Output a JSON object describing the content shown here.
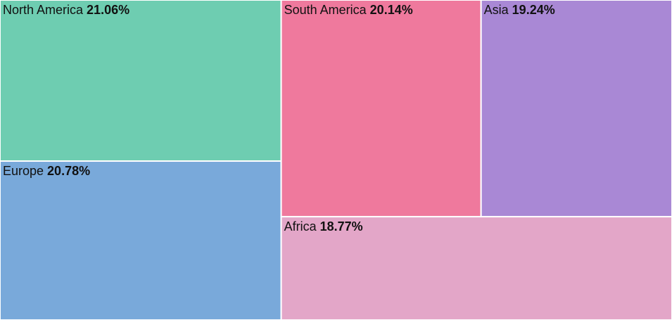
{
  "chart_data": {
    "type": "treemap",
    "unit": "%",
    "items": [
      {
        "name": "North America",
        "value": 21.06,
        "value_label": "21.06%",
        "color": "#6ecdb1"
      },
      {
        "name": "Europe",
        "value": 20.78,
        "value_label": "20.78%",
        "color": "#79a9da"
      },
      {
        "name": "South America",
        "value": 20.14,
        "value_label": "20.14%",
        "color": "#ef799d"
      },
      {
        "name": "Asia",
        "value": 19.24,
        "value_label": "19.24%",
        "color": "#a988d5"
      },
      {
        "name": "Africa",
        "value": 18.77,
        "value_label": "18.77%",
        "color": "#e3a6c8"
      }
    ]
  }
}
